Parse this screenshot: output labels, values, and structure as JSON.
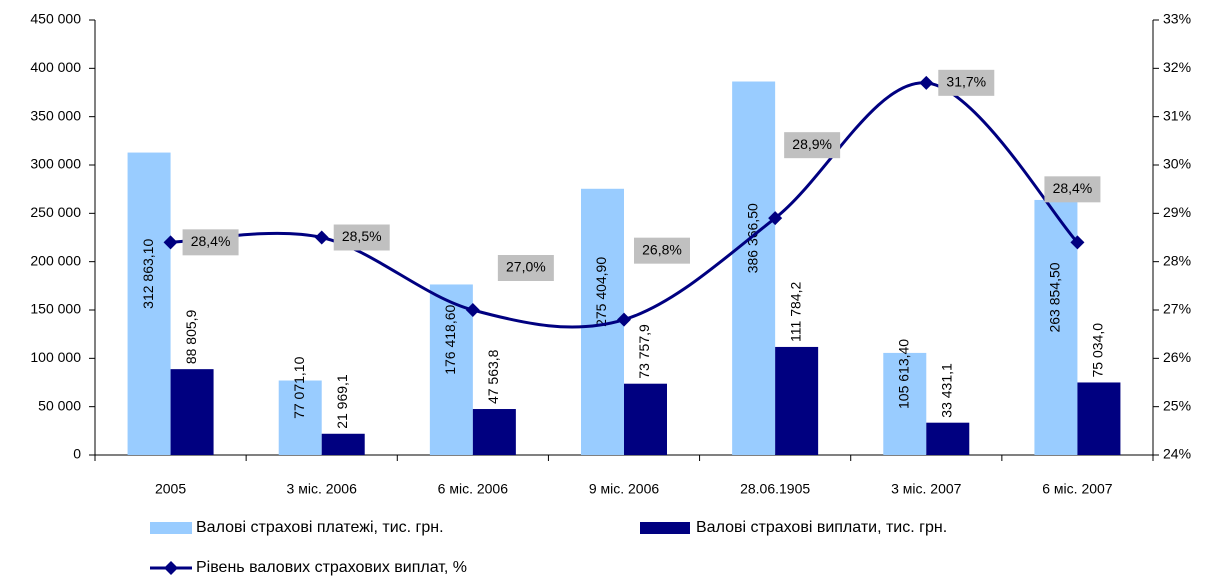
{
  "chart_data": {
    "type": "bar_line",
    "categories": [
      "2005",
      "3 міс. 2006",
      "6 міс. 2006",
      "9 міс. 2006",
      "28.06.1905",
      "3 міс. 2007",
      "6 міс. 2007"
    ],
    "series": [
      {
        "name": "Валові страхові платежі, тис. грн.",
        "color": "#99ccff",
        "type": "bar",
        "values": [
          312863.1,
          77071.1,
          176418.6,
          275404.9,
          386366.5,
          105613.4,
          263854.5
        ],
        "value_labels": [
          "312 863,10",
          "77 071,10",
          "176 418,60",
          "275 404,90",
          "386 366,50",
          "105 613,40",
          "263 854,50"
        ]
      },
      {
        "name": "Валові страхові виплати, тис. грн.",
        "color": "#000080",
        "type": "bar",
        "values": [
          88805.9,
          21969.1,
          47563.8,
          73757.9,
          111784.2,
          33431.1,
          75034.0
        ],
        "value_labels": [
          "88 805,9",
          "21 969,1",
          "47 563,8",
          "73 757,9",
          "111 784,2",
          "33 431,1",
          "75 034,0"
        ]
      },
      {
        "name": "Рівень валових страхових виплат, %",
        "color": "#000080",
        "type": "line",
        "axis": "y2",
        "values": [
          28.4,
          28.5,
          27.0,
          26.8,
          28.9,
          31.7,
          28.4
        ],
        "value_labels": [
          "28,4%",
          "28,5%",
          "27,0%",
          "26,8%",
          "28,9%",
          "31,7%",
          "28,4%"
        ]
      }
    ],
    "ylim": [
      0,
      450000
    ],
    "yticks": [
      0,
      {
        "value": 50000,
        "label": "50 000"
      },
      {
        "value": 100000,
        "label": "100 000"
      },
      {
        "value": 150000,
        "label": "150 000"
      },
      {
        "value": 200000,
        "label": "200 000"
      },
      {
        "value": 250000,
        "label": "250 000"
      },
      {
        "value": 300000,
        "label": "300 000"
      },
      {
        "value": 350000,
        "label": "350 000"
      },
      {
        "value": 400000,
        "label": "400 000"
      },
      {
        "value": 450000,
        "label": "450 000"
      }
    ],
    "y2lim": [
      24,
      33
    ],
    "y2ticks": [
      {
        "value": 24,
        "label": "24%"
      },
      {
        "value": 25,
        "label": "25%"
      },
      {
        "value": 26,
        "label": "26%"
      },
      {
        "value": 27,
        "label": "27%"
      },
      {
        "value": 28,
        "label": "28%"
      },
      {
        "value": 29,
        "label": "29%"
      },
      {
        "value": 30,
        "label": "30%"
      },
      {
        "value": 31,
        "label": "31%"
      },
      {
        "value": 32,
        "label": "32%"
      },
      {
        "value": 33,
        "label": "33%"
      }
    ],
    "grid": false,
    "legend": "bottom"
  }
}
